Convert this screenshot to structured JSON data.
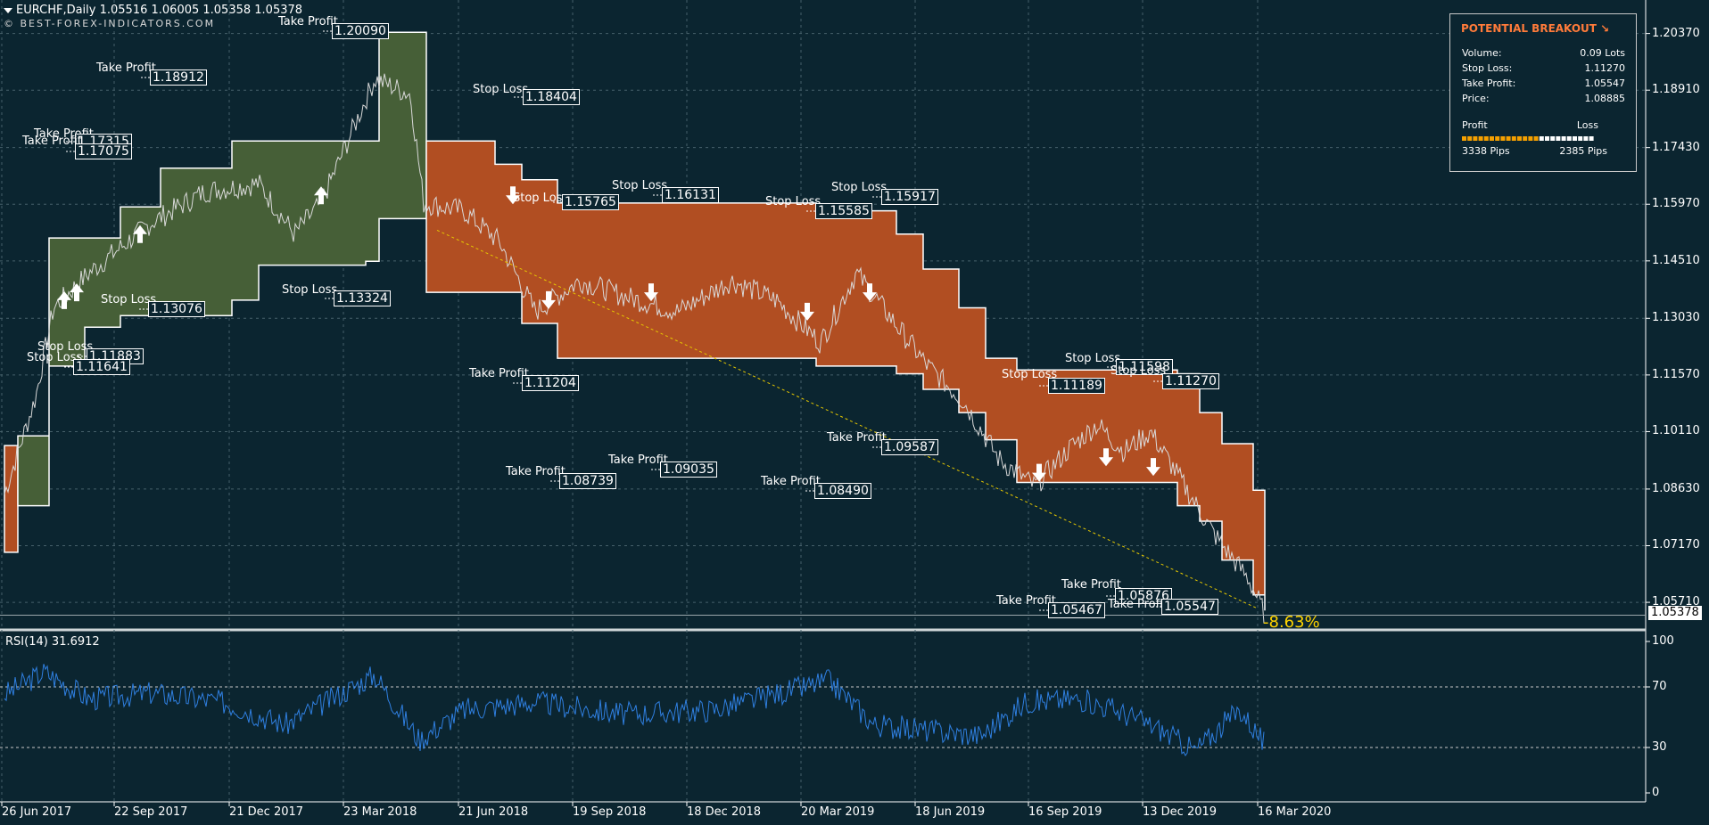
{
  "header": {
    "symbol_line": "EURCHF,Daily  1.05516 1.06005 1.05358 1.05378",
    "watermark": "© BEST-FOREX-INDICATORS.COM"
  },
  "chart_data": {
    "type": "line",
    "price_axis": {
      "ticks": [
        "1.20370",
        "1.18910",
        "1.17430",
        "1.15970",
        "1.14510",
        "1.13030",
        "1.11570",
        "1.10110",
        "1.08630",
        "1.07170",
        "1.05710"
      ],
      "ylim": [
        1.05,
        1.2105
      ],
      "current_price": "1.05378"
    },
    "x_axis": {
      "ticks": [
        "26 Jun 2017",
        "22 Sep 2017",
        "21 Dec 2017",
        "23 Mar 2018",
        "21 Jun 2018",
        "19 Sep 2018",
        "18 Dec 2018",
        "20 Mar 2019",
        "18 Jun 2019",
        "16 Sep 2019",
        "13 Dec 2019",
        "16 Mar 2020"
      ]
    },
    "change_label": "-8.63%",
    "labels": [
      {
        "type": "Take Profit",
        "value": "1.20090"
      },
      {
        "type": "Take Profit",
        "value": "1.18912"
      },
      {
        "type": "Take Profit",
        "value": "1.17315"
      },
      {
        "type": "Take Profit",
        "value": "1.17075"
      },
      {
        "type": "Stop Loss",
        "value": "1.18404"
      },
      {
        "type": "Stop Loss",
        "value": "1.16131"
      },
      {
        "type": "Stop Loss",
        "value": "1.15765"
      },
      {
        "type": "Stop Loss",
        "value": "1.15585"
      },
      {
        "type": "Stop Loss",
        "value": "1.15917"
      },
      {
        "type": "Stop Loss",
        "value": "1.13076"
      },
      {
        "type": "Stop Loss",
        "value": "1.13324"
      },
      {
        "type": "Stop Loss",
        "value": "1.11883"
      },
      {
        "type": "Stop Loss",
        "value": "1.11641"
      },
      {
        "type": "Take Profit",
        "value": "1.11204"
      },
      {
        "type": "Take Profit",
        "value": "1.09035"
      },
      {
        "type": "Take Profit",
        "value": "1.08739"
      },
      {
        "type": "Take Profit",
        "value": "1.08490"
      },
      {
        "type": "Take Profit",
        "value": "1.09587"
      },
      {
        "type": "Stop Loss",
        "value": "1.11598"
      },
      {
        "type": "Stop Loss",
        "value": "1.11189"
      },
      {
        "type": "Stop Loss",
        "value": "1.11270"
      },
      {
        "type": "Take Profit",
        "value": "1.05876"
      },
      {
        "type": "Take Profit",
        "value": "1.05467"
      },
      {
        "type": "Take Profit",
        "value": "1.05547"
      }
    ],
    "rsi": {
      "title": "RSI(14) 31.6912",
      "ticks": [
        "100",
        "70",
        "30",
        "0"
      ],
      "levels": [
        70,
        30
      ]
    },
    "colors": {
      "background": "#0b2530",
      "bull_band": "#465f37",
      "bear_band": "#b14e22",
      "rsi_line": "#2f7fe0",
      "trend_line": "#e6c800",
      "change_label": "#ffd400"
    }
  },
  "panel": {
    "title": "POTENTIAL BREAKOUT ↘",
    "rows": [
      {
        "label": "Volume:",
        "value": "0.09 Lots"
      },
      {
        "label": "Stop Loss:",
        "value": "1.11270"
      },
      {
        "label": "Take Profit:",
        "value": "1.05547"
      },
      {
        "label": "Price:",
        "value": "1.08885"
      }
    ],
    "profit_label": "Profit",
    "loss_label": "Loss",
    "profit_pips": "3338 Pips",
    "loss_pips": "2385 Pips",
    "profit_ratio": 0.58
  }
}
